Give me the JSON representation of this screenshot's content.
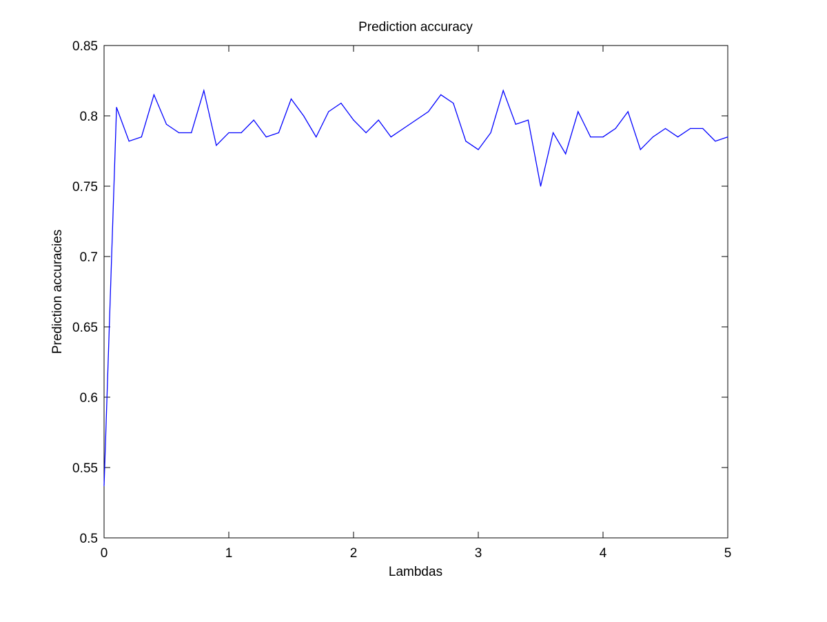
{
  "chart_data": {
    "type": "line",
    "title": "Prediction accuracy",
    "xlabel": "Lambdas",
    "ylabel": "Prediction accuracies",
    "xlim": [
      0,
      5
    ],
    "ylim": [
      0.5,
      0.85
    ],
    "xticks": [
      0,
      1,
      2,
      3,
      4,
      5
    ],
    "yticks": [
      0.5,
      0.55,
      0.6,
      0.65,
      0.7,
      0.75,
      0.8,
      0.85
    ],
    "xtick_labels": [
      "0",
      "1",
      "2",
      "3",
      "4",
      "5"
    ],
    "ytick_labels": [
      "0.5",
      "0.55",
      "0.6",
      "0.65",
      "0.7",
      "0.75",
      "0.8",
      "0.85"
    ],
    "grid": false,
    "line_color": "#0000ff",
    "series": [
      {
        "x": [
          0,
          0.1,
          0.2,
          0.3,
          0.4,
          0.5,
          0.6,
          0.7,
          0.8,
          0.9,
          1.0,
          1.1,
          1.2,
          1.3,
          1.4,
          1.5,
          1.6,
          1.7,
          1.8,
          1.9,
          2.0,
          2.1,
          2.2,
          2.3,
          2.4,
          2.5,
          2.6,
          2.7,
          2.8,
          2.9,
          3.0,
          3.1,
          3.2,
          3.3,
          3.4,
          3.5,
          3.6,
          3.7,
          3.8,
          3.9,
          4.0,
          4.1,
          4.2,
          4.3,
          4.4,
          4.5,
          4.6,
          4.7,
          4.8,
          4.9,
          5.0
        ],
        "y": [
          0.537,
          0.806,
          0.782,
          0.785,
          0.815,
          0.794,
          0.788,
          0.788,
          0.818,
          0.779,
          0.788,
          0.788,
          0.797,
          0.785,
          0.788,
          0.812,
          0.8,
          0.785,
          0.803,
          0.809,
          0.797,
          0.788,
          0.797,
          0.785,
          0.791,
          0.797,
          0.803,
          0.815,
          0.809,
          0.782,
          0.776,
          0.788,
          0.818,
          0.794,
          0.797,
          0.75,
          0.788,
          0.773,
          0.803,
          0.785,
          0.785,
          0.791,
          0.803,
          0.776,
          0.785,
          0.791,
          0.785,
          0.791,
          0.791,
          0.782,
          0.785
        ]
      }
    ]
  }
}
